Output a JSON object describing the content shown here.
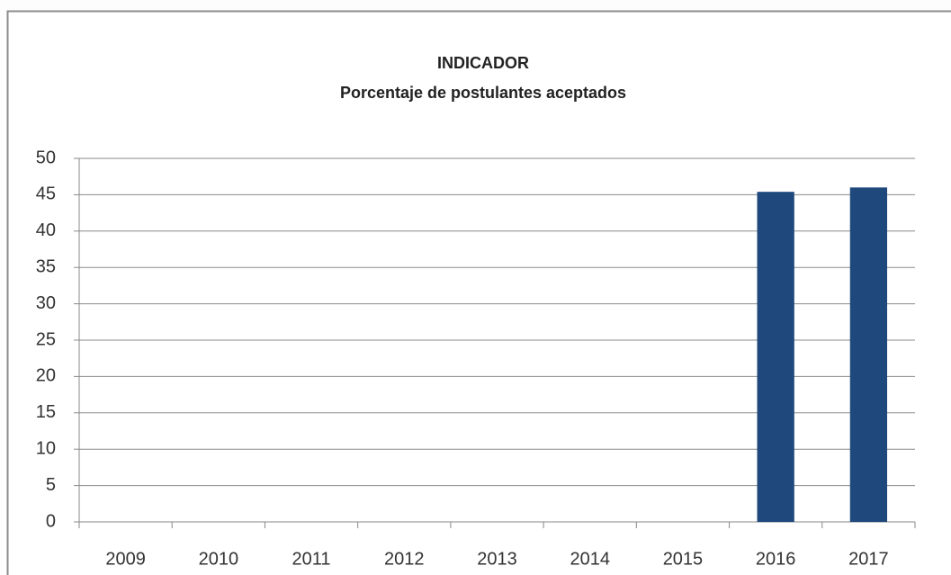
{
  "chart_data": {
    "type": "bar",
    "title": "INDICADOR",
    "subtitle": "Porcentaje de postulantes aceptados",
    "categories": [
      "2009",
      "2010",
      "2011",
      "2012",
      "2013",
      "2014",
      "2015",
      "2016",
      "2017"
    ],
    "values": [
      null,
      null,
      null,
      null,
      null,
      null,
      null,
      45.4,
      46
    ],
    "color": "#1f497d",
    "ylim": [
      0,
      50
    ],
    "yticks": [
      0,
      5,
      10,
      15,
      20,
      25,
      30,
      35,
      40,
      45,
      50
    ],
    "grid": true
  }
}
